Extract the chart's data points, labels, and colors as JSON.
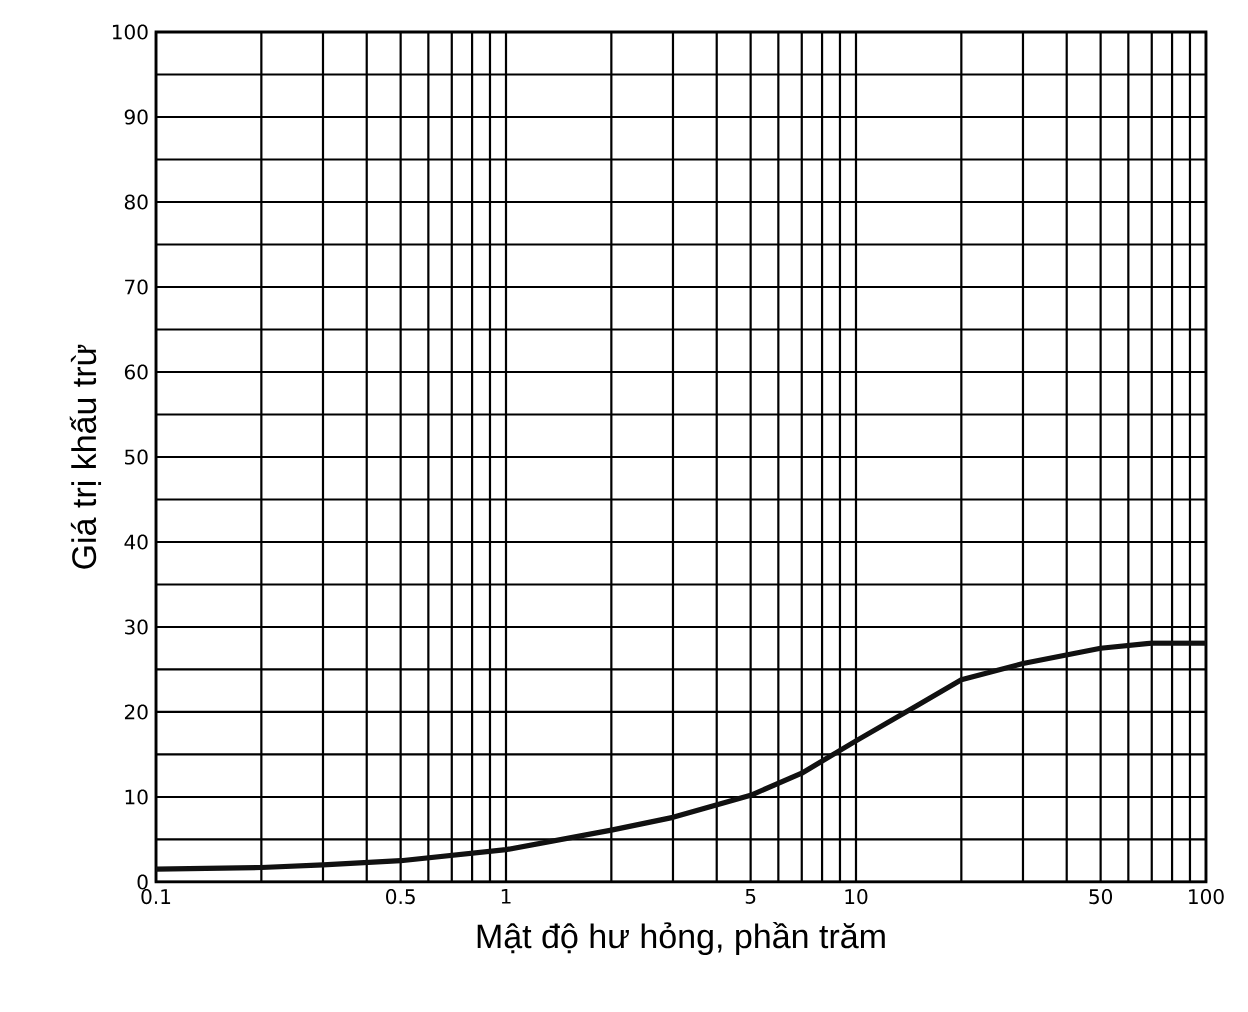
{
  "chart_data": {
    "type": "line",
    "xlabel": "Mật độ hư hỏng, phần trăm",
    "ylabel": "Giá trị khấu trừ",
    "log": "x",
    "grid": true,
    "color": "#111111",
    "x": [
      0.1,
      0.2,
      0.3,
      0.5,
      1,
      2,
      3,
      5,
      7,
      10,
      15,
      20,
      30,
      50,
      70,
      100
    ],
    "values": [
      1.5,
      1.7,
      2.0,
      2.5,
      3.8,
      6.1,
      7.6,
      10.2,
      12.8,
      16.6,
      20.8,
      23.8,
      25.7,
      27.5,
      28.1,
      28.1
    ],
    "xlim": [
      0.1,
      100
    ],
    "ylim": [
      0,
      100
    ],
    "xticks": [
      0.1,
      {
        "value": 0.2,
        "label": null
      },
      {
        "value": 0.3,
        "label": null
      },
      {
        "value": 0.4,
        "label": null
      },
      0.5,
      {
        "value": 0.6,
        "label": null
      },
      {
        "value": 0.7,
        "label": null
      },
      {
        "value": 0.8,
        "label": null
      },
      {
        "value": 0.9,
        "label": null
      },
      1,
      {
        "value": 2,
        "label": null
      },
      {
        "value": 3,
        "label": null
      },
      {
        "value": 4,
        "label": null
      },
      5,
      {
        "value": 6,
        "label": null
      },
      {
        "value": 7,
        "label": null
      },
      {
        "value": 8,
        "label": null
      },
      {
        "value": 9,
        "label": null
      },
      10,
      {
        "value": 20,
        "label": null
      },
      {
        "value": 30,
        "label": null
      },
      {
        "value": 40,
        "label": null
      },
      50,
      {
        "value": 60,
        "label": null
      },
      {
        "value": 70,
        "label": null
      },
      {
        "value": 80,
        "label": null
      },
      {
        "value": 90,
        "label": null
      },
      100
    ],
    "yticks": [
      0,
      {
        "value": 5,
        "label": null
      },
      10,
      {
        "value": 15,
        "label": null
      },
      20,
      {
        "value": 25,
        "label": null
      },
      30,
      {
        "value": 35,
        "label": null
      },
      40,
      {
        "value": 45,
        "label": null
      },
      50,
      {
        "value": 55,
        "label": null
      },
      60,
      {
        "value": 65,
        "label": null
      },
      70,
      {
        "value": 75,
        "label": null
      },
      80,
      {
        "value": 85,
        "label": null
      },
      90,
      {
        "value": 95,
        "label": null
      },
      100
    ]
  }
}
